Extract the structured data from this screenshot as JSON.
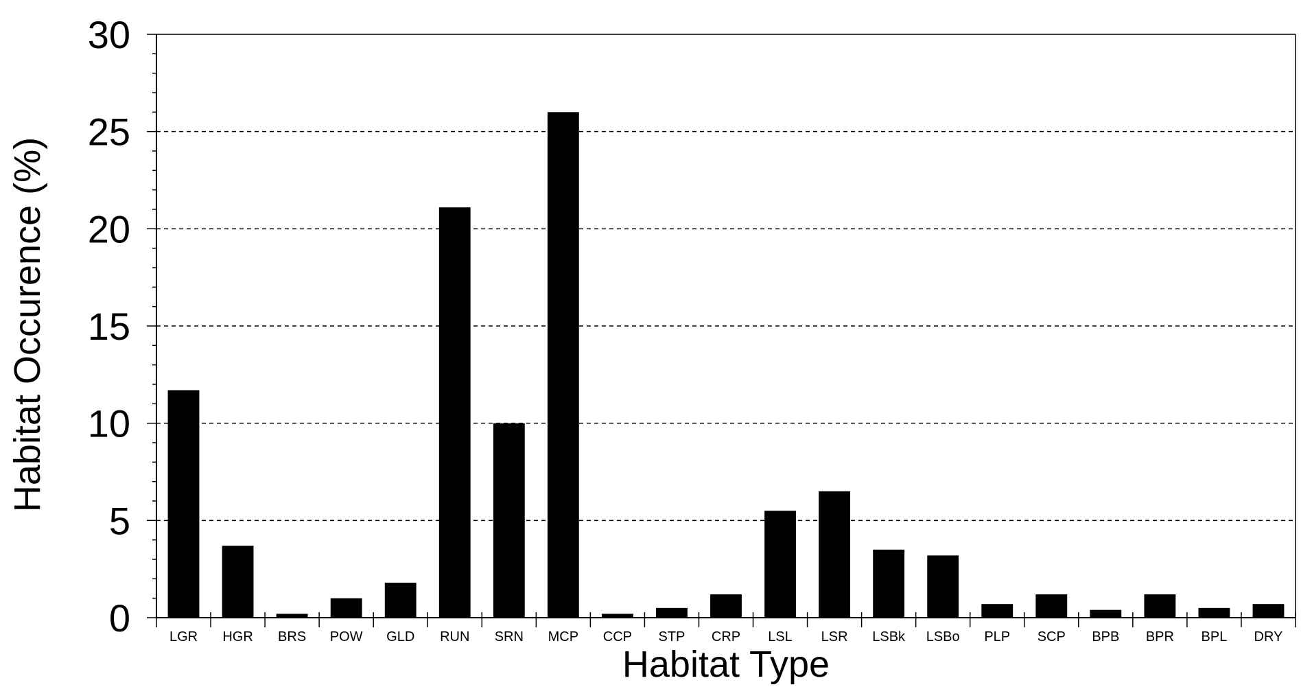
{
  "chart_data": {
    "type": "bar",
    "title": "",
    "xlabel": "Habitat Type",
    "ylabel": "Habitat Occurence (%)",
    "ylim": [
      0,
      30
    ],
    "yticks": [
      0,
      5,
      10,
      15,
      20,
      25,
      30
    ],
    "grid": "horizontal dashed",
    "bar_color": "#000000",
    "categories": [
      "LGR",
      "HGR",
      "BRS",
      "POW",
      "GLD",
      "RUN",
      "SRN",
      "MCP",
      "CCP",
      "STP",
      "CRP",
      "LSL",
      "LSR",
      "LSBk",
      "LSBo",
      "PLP",
      "SCP",
      "BPB",
      "BPR",
      "BPL",
      "DRY"
    ],
    "values": [
      11.7,
      3.7,
      0.2,
      1.0,
      1.8,
      21.1,
      10.0,
      26.0,
      0.2,
      0.5,
      1.2,
      5.5,
      6.5,
      3.5,
      3.2,
      0.7,
      1.2,
      0.4,
      1.2,
      0.5,
      0.7
    ]
  }
}
